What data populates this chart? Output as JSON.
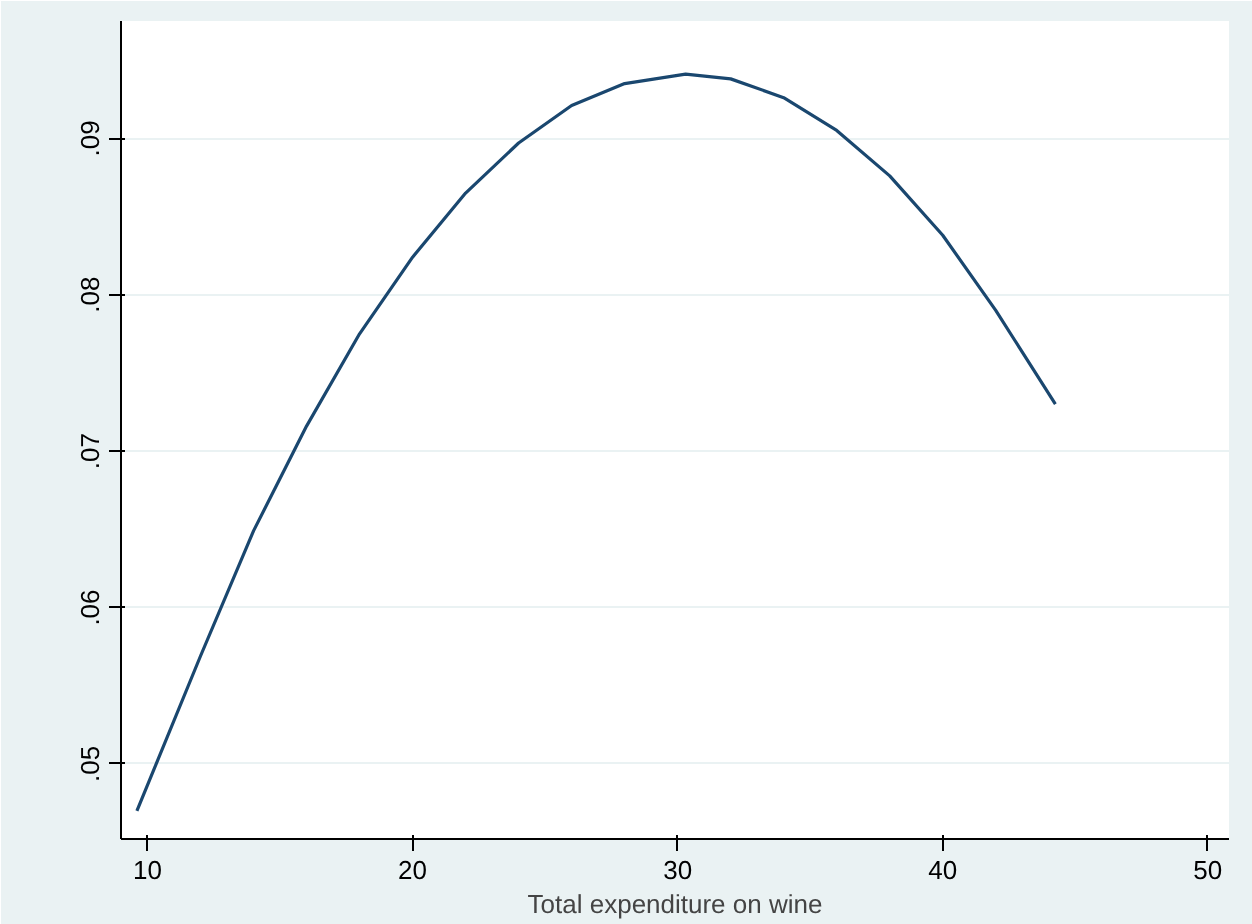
{
  "chart_data": {
    "type": "line",
    "xlabel": "Total expenditure on wine",
    "x": [
      9.6,
      12,
      14,
      16,
      18,
      20,
      22,
      24,
      26,
      28,
      30.3,
      32,
      34,
      36,
      38,
      40,
      42,
      44.25
    ],
    "series": [
      {
        "color": "#1a476f",
        "values": [
          0.047,
          0.0569,
          0.0649,
          0.0716,
          0.0775,
          0.0824,
          0.0865,
          0.0897,
          0.0921,
          0.0935,
          0.0941,
          0.0938,
          0.0926,
          0.0905,
          0.0876,
          0.0838,
          0.079,
          0.073
        ]
      }
    ],
    "xlim": [
      9,
      50.8
    ],
    "ylim": [
      0.0452,
      0.0975
    ],
    "xticks": [
      10,
      20,
      30,
      40,
      50
    ],
    "yticks": [
      {
        "value": 0.05,
        "label": ".05"
      },
      {
        "value": 0.06,
        "label": ".06"
      },
      {
        "value": 0.07,
        "label": ".07"
      },
      {
        "value": 0.08,
        "label": ".08"
      },
      {
        "value": 0.09,
        "label": ".09"
      }
    ],
    "grid": "y",
    "marker": "none",
    "line_style": "solid"
  }
}
